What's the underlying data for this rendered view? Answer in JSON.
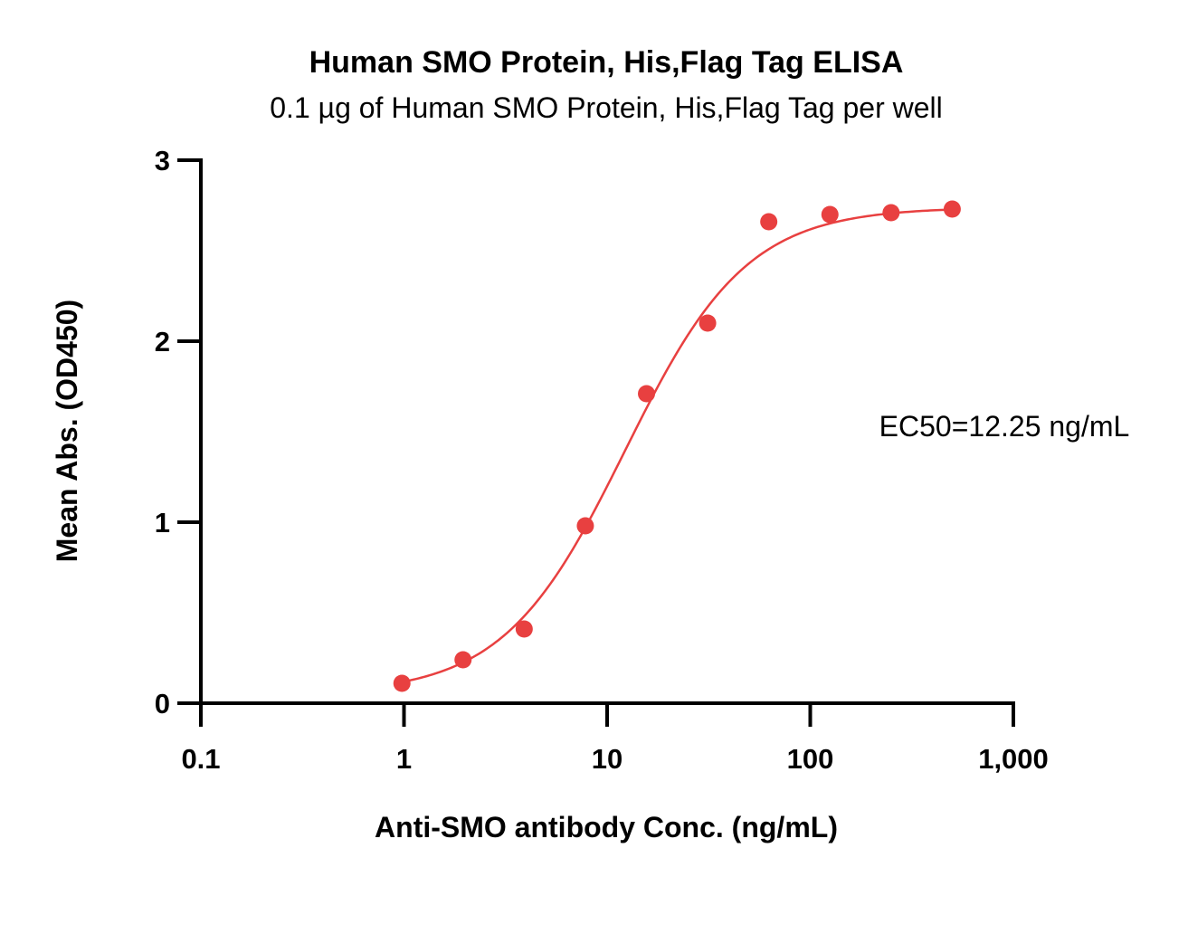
{
  "chart_data": {
    "type": "scatter",
    "title": "Human SMO Protein, His,Flag Tag ELISA",
    "subtitle": "0.1 µg of Human SMO Protein, His,Flag Tag per well",
    "xlabel": "Anti-SMO antibody Conc. (ng/mL)",
    "ylabel": "Mean Abs. (OD450)",
    "x_scale": "log",
    "xlim": [
      0.1,
      1000
    ],
    "ylim": [
      0,
      3
    ],
    "x_ticks": [
      0.1,
      1,
      10,
      100,
      1000
    ],
    "x_tick_labels": [
      "0.1",
      "1",
      "10",
      "100",
      "1,000"
    ],
    "y_ticks": [
      0,
      1,
      2,
      3
    ],
    "y_tick_labels": [
      "0",
      "1",
      "2",
      "3"
    ],
    "grid": false,
    "series": [
      {
        "x": [
          0.977,
          1.953,
          3.906,
          7.813,
          15.625,
          31.25,
          62.5,
          125,
          250,
          500
        ],
        "y": [
          0.11,
          0.24,
          0.41,
          0.98,
          1.71,
          2.1,
          2.66,
          2.7,
          2.71,
          2.73
        ],
        "color": "#e84040",
        "fit": "4PL",
        "fit_params": {
          "bottom": 0.05,
          "top": 2.74,
          "ec50": 12.25,
          "hill": 1.45
        }
      }
    ],
    "annotations": [
      {
        "text": "EC50=12.25 ng/mL"
      }
    ]
  }
}
